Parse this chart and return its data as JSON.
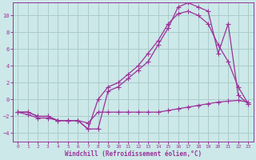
{
  "xlabel": "Windchill (Refroidissement éolien,°C)",
  "bg_color": "#cce8e8",
  "grid_color": "#aacccc",
  "line_color": "#993399",
  "xlim": [
    -0.5,
    23.5
  ],
  "ylim": [
    -5,
    11.5
  ],
  "xticks": [
    0,
    1,
    2,
    3,
    4,
    5,
    6,
    7,
    8,
    9,
    10,
    11,
    12,
    13,
    14,
    15,
    16,
    17,
    18,
    19,
    20,
    21,
    22,
    23
  ],
  "yticks": [
    -4,
    -2,
    0,
    2,
    4,
    6,
    8,
    10
  ],
  "series1_x": [
    0,
    1,
    2,
    3,
    4,
    5,
    6,
    7,
    8,
    9,
    10,
    11,
    12,
    13,
    14,
    15,
    16,
    17,
    18,
    19,
    20,
    21,
    22,
    23
  ],
  "series1_y": [
    -1.5,
    -1.8,
    -2.2,
    -2.2,
    -2.5,
    -2.5,
    -2.5,
    -2.8,
    -1.5,
    -1.5,
    -1.5,
    -1.5,
    -1.5,
    -1.5,
    -1.5,
    -1.3,
    -1.1,
    -0.9,
    -0.7,
    -0.5,
    -0.3,
    -0.2,
    -0.1,
    -0.3
  ],
  "series2_x": [
    0,
    1,
    2,
    3,
    4,
    5,
    6,
    7,
    8,
    9,
    10,
    11,
    12,
    13,
    14,
    15,
    16,
    17,
    18,
    19,
    20,
    21,
    22,
    23
  ],
  "series2_y": [
    -1.5,
    -1.5,
    -2.0,
    -2.0,
    -2.5,
    -2.5,
    -2.5,
    -3.5,
    -3.5,
    1.0,
    1.5,
    2.5,
    3.5,
    4.5,
    6.5,
    8.5,
    11.0,
    11.5,
    11.0,
    10.5,
    5.5,
    9.0,
    0.5,
    -0.5
  ],
  "series3_x": [
    0,
    1,
    2,
    3,
    4,
    5,
    6,
    7,
    8,
    9,
    10,
    11,
    12,
    13,
    14,
    15,
    16,
    17,
    18,
    19,
    20,
    21,
    22,
    23
  ],
  "series3_y": [
    -1.5,
    -1.5,
    -2.0,
    -2.0,
    -2.5,
    -2.5,
    -2.5,
    -3.5,
    0.0,
    1.5,
    2.0,
    3.0,
    4.0,
    5.5,
    7.0,
    9.0,
    10.2,
    10.5,
    10.0,
    9.0,
    6.5,
    4.5,
    1.5,
    -0.5
  ]
}
